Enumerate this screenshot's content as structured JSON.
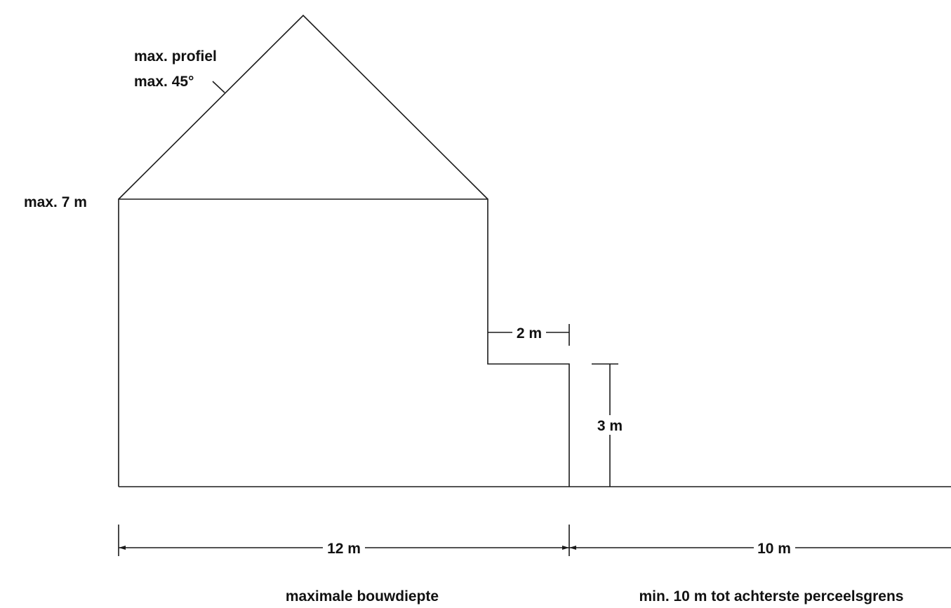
{
  "diagram": {
    "roof_label_line1": "max. profiel",
    "roof_label_line2": "max. 45°",
    "eave_height": "max. 7 m",
    "step_width": "2 m",
    "annex_height": "3 m",
    "main_depth": "12 m",
    "rear_distance": "10 m",
    "main_depth_caption": "maximale bouwdiepte",
    "rear_distance_caption": "min. 10 m tot achterste perceelsgrens"
  }
}
